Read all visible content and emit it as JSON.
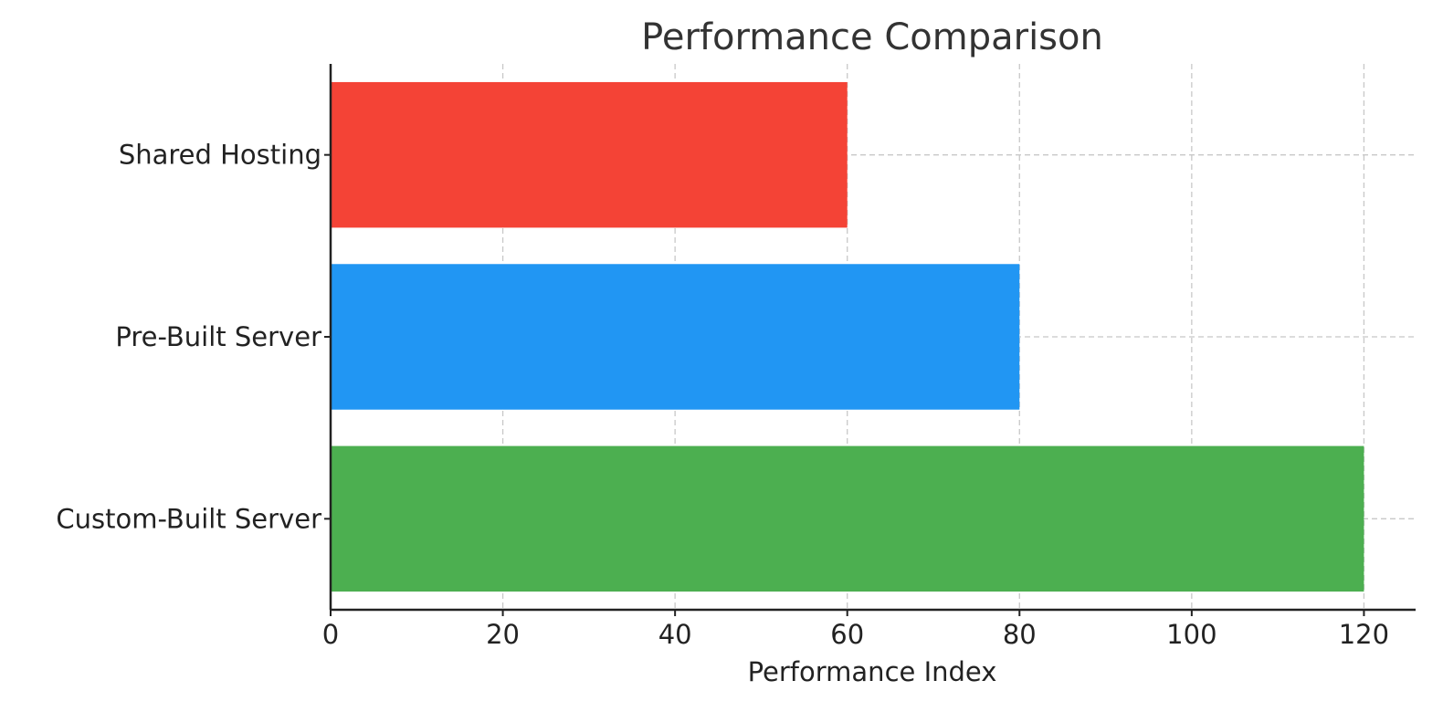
{
  "chart_data": {
    "type": "bar",
    "orientation": "horizontal",
    "title": "Performance Comparison",
    "xlabel": "Performance Index",
    "ylabel": "",
    "categories": [
      "Shared Hosting",
      "Pre-Built Server",
      "Custom-Built Server"
    ],
    "values": [
      60,
      80,
      120
    ],
    "colors": [
      "#f44336",
      "#2196f3",
      "#4caf50"
    ],
    "xlim": [
      0,
      126
    ],
    "xticks": [
      0,
      20,
      40,
      60,
      80,
      100,
      120
    ],
    "grid": true
  }
}
